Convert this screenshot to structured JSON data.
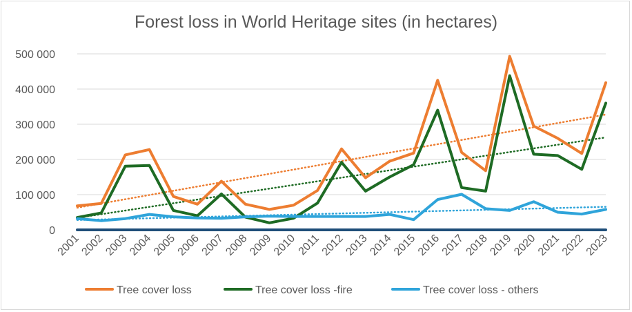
{
  "chart_data": {
    "type": "line",
    "title": "Forest loss in World Heritage sites (in hectares)",
    "xlabel": "",
    "ylabel": "",
    "ylim": [
      0,
      500000
    ],
    "y_ticks": [
      "0",
      "100 000",
      "200 000",
      "300 000",
      "400 000",
      "500 000"
    ],
    "y_tick_values": [
      0,
      100000,
      200000,
      300000,
      400000,
      500000
    ],
    "categories": [
      "2001",
      "2002",
      "2003",
      "2004",
      "2005",
      "2006",
      "2007",
      "2008",
      "2009",
      "2010",
      "2011",
      "2012",
      "2013",
      "2014",
      "2015",
      "2016",
      "2017",
      "2018",
      "2019",
      "2020",
      "2021",
      "2022",
      "2023"
    ],
    "grid": "horizontal",
    "legend_position": "bottom",
    "series": [
      {
        "name": "Tree cover loss",
        "color": "#ED7D31",
        "values": [
          68000,
          75000,
          213000,
          228000,
          95000,
          73000,
          138000,
          73000,
          58000,
          70000,
          112000,
          230000,
          148000,
          195000,
          218000,
          425000,
          220000,
          168000,
          493000,
          295000,
          260000,
          217000,
          418000
        ],
        "trendline": true
      },
      {
        "name": "Tree cover loss -fire",
        "color": "#1E6B24",
        "values": [
          35000,
          48000,
          181000,
          183000,
          55000,
          40000,
          102000,
          36000,
          20000,
          33000,
          76000,
          192000,
          110000,
          150000,
          185000,
          340000,
          120000,
          110000,
          438000,
          215000,
          211000,
          172000,
          360000
        ],
        "trendline": true
      },
      {
        "name": "Tree cover loss - others",
        "color": "#2FA4DA",
        "values": [
          32000,
          26000,
          32000,
          44000,
          37000,
          34000,
          33000,
          37000,
          39000,
          38000,
          38000,
          38000,
          38000,
          44000,
          29000,
          86000,
          101000,
          60000,
          55000,
          80000,
          50000,
          45000,
          58000
        ],
        "trendline": true
      },
      {
        "name": "",
        "color": "#1F4E79",
        "values": [
          0,
          0,
          0,
          0,
          0,
          0,
          0,
          0,
          0,
          0,
          0,
          0,
          0,
          0,
          0,
          0,
          0,
          0,
          0,
          0,
          0,
          0,
          0
        ],
        "legend": false
      }
    ]
  }
}
